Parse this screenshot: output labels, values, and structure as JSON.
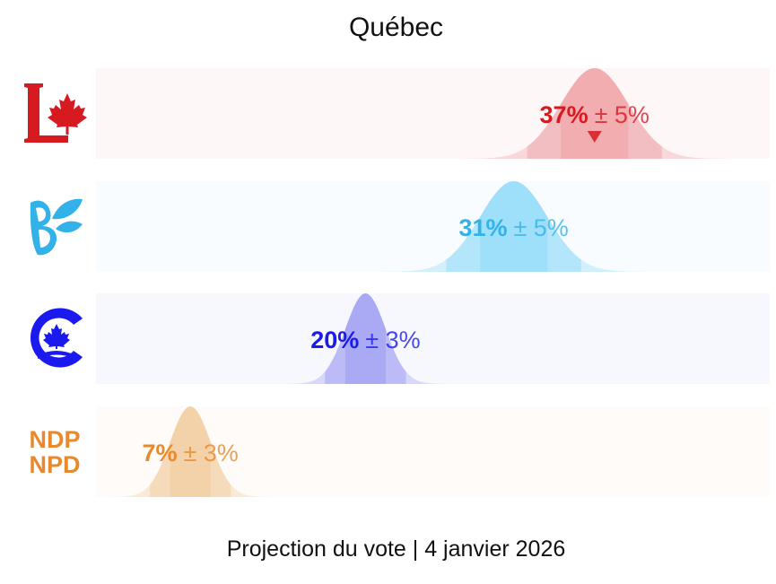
{
  "title": "Québec",
  "footer": "Projection du vote | 4 janvier 2026",
  "logos": [
    {
      "icon": "liberal-logo-icon",
      "color": "#d71920"
    },
    {
      "icon": "bloc-quebecois-logo-icon",
      "color": "#33b2ea"
    },
    {
      "icon": "conservative-logo-icon",
      "color": "#1a1aee"
    },
    {
      "icon": "ndp-logo-icon",
      "color": "#e8892b",
      "lines": [
        "NDP",
        "NPD"
      ]
    }
  ],
  "chart_data": {
    "type": "distribution",
    "x_range": [
      0,
      50
    ],
    "series": [
      {
        "value": 37,
        "margin": 5,
        "value_label": "37%",
        "margin_label": "± 5%",
        "color": "#d71920",
        "band_color": "#ee9fa2",
        "trend": "down"
      },
      {
        "value": 31,
        "margin": 5,
        "value_label": "31%",
        "margin_label": "± 5%",
        "color": "#33b2ea",
        "band_color": "#8dd9f8"
      },
      {
        "value": 20,
        "margin": 3,
        "value_label": "20%",
        "margin_label": "± 3%",
        "color": "#1a1aee",
        "band_color": "#9a9af3"
      },
      {
        "value": 7,
        "margin": 3,
        "value_label": "7%",
        "margin_label": "± 3%",
        "color": "#e8892b",
        "band_color": "#f2ca9a"
      }
    ]
  }
}
